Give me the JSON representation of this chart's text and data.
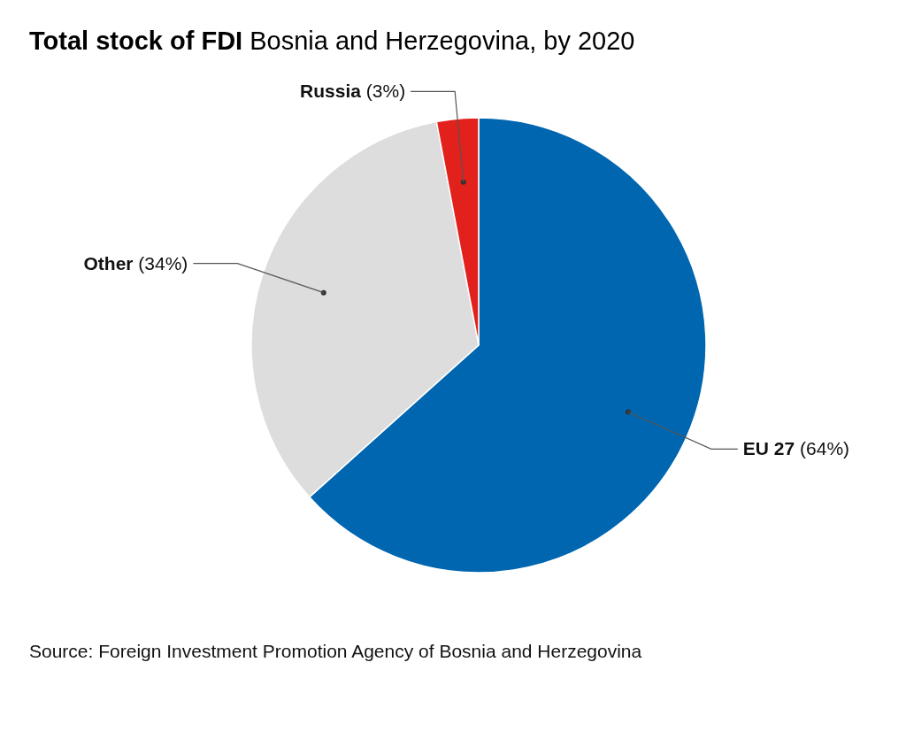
{
  "chart_data": {
    "type": "pie",
    "title": "Total stock of FDI",
    "subtitle": "Bosnia and Herzegovina, by 2020",
    "categories": [
      "EU 27",
      "Other",
      "Russia"
    ],
    "values": [
      64,
      34,
      3
    ],
    "value_labels": [
      "(64%)",
      "(34%)",
      "(3%)"
    ],
    "colors": [
      "#0066b0",
      "#dddddd",
      "#e3211c"
    ],
    "annotations": [
      "Source: Foreign Investment Promotion Agency of Bosnia and Herzegovina"
    ]
  }
}
